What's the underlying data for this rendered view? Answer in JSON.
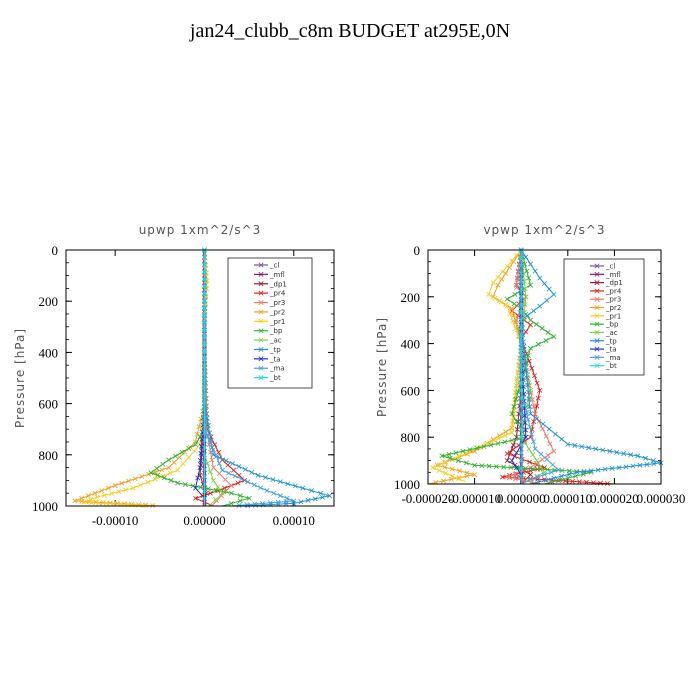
{
  "title": "jan24_clubb_c8m  BUDGET at295E,0N",
  "colors": {
    "_cl": "#7b4f9e",
    "_mfl": "#7d1a7d",
    "_dp1": "#a0162a",
    "_pr4": "#e0201c",
    "_pr3": "#f07a6a",
    "_pr2": "#f0a020",
    "_pr1": "#f0d020",
    "_bp": "#30b030",
    "_ac": "#80d040",
    "_tp": "#2090d0",
    "_ta": "#2030c0",
    "_ma": "#40a0e0",
    "_bt": "#20d8f0"
  },
  "chart_data": [
    {
      "type": "line",
      "title": "upwp   1xm^2/s^3",
      "ylabel": "Pressure [hPa]",
      "xlabel": "",
      "xlim": [
        -0.000155,
        0.000145
      ],
      "ylim": [
        1000,
        0
      ],
      "xticks": [
        -0.0001,
        0,
        0.0001
      ],
      "xtick_labels": [
        "-0.00010",
        "0.00000",
        "0.00010"
      ],
      "yticks": [
        0,
        200,
        400,
        600,
        800,
        1000
      ],
      "ytick_labels": [
        "0",
        "200",
        "400",
        "600",
        "800",
        "1000"
      ],
      "legend": [
        "_cl",
        "_mfl",
        "_dp1",
        "_pr4",
        "_pr3",
        "_pr2",
        "_pr1",
        "_bp",
        "_ac",
        "_tp",
        "_ta",
        "_ma",
        "_bt"
      ],
      "legend_position": "top-right",
      "series": [
        {
          "name": "_cl",
          "x": [
            0,
            0,
            0,
            0,
            0,
            0
          ],
          "y": [
            0,
            200,
            400,
            600,
            800,
            1000
          ]
        },
        {
          "name": "_mfl",
          "x": [
            0,
            0,
            0,
            0,
            0,
            0
          ],
          "y": [
            0,
            200,
            400,
            600,
            800,
            1000
          ]
        },
        {
          "name": "_dp1",
          "x": [
            0,
            0,
            0,
            0,
            -3e-06,
            -5e-06,
            2e-06,
            0
          ],
          "y": [
            0,
            200,
            400,
            600,
            800,
            880,
            950,
            1000
          ]
        },
        {
          "name": "_pr4",
          "x": [
            0,
            0,
            0,
            3e-06,
            2e-05,
            4.5e-05,
            1.5e-05,
            -1e-05,
            1e-05
          ],
          "y": [
            0,
            200,
            400,
            700,
            820,
            900,
            940,
            970,
            1000
          ]
        },
        {
          "name": "_pr3",
          "x": [
            0,
            0,
            0,
            2e-06,
            1e-05,
            3e-05,
            8e-06
          ],
          "y": [
            0,
            200,
            400,
            700,
            850,
            920,
            1000
          ]
        },
        {
          "name": "_pr2",
          "x": [
            0,
            2e-06,
            0,
            0,
            -1e-05,
            -4e-05,
            -0.0001,
            -0.00013,
            -0.000145,
            -5e-05
          ],
          "y": [
            0,
            150,
            300,
            600,
            750,
            850,
            920,
            960,
            980,
            1000
          ]
        },
        {
          "name": "_pr1",
          "x": [
            0,
            3e-06,
            0,
            0,
            -5e-06,
            -3e-05,
            -8e-05,
            -0.00012,
            -0.000135,
            -6e-05
          ],
          "y": [
            0,
            120,
            250,
            600,
            760,
            860,
            930,
            965,
            985,
            1000
          ]
        },
        {
          "name": "_bp",
          "x": [
            0,
            0,
            0,
            -1e-05,
            -4e-05,
            -6e-05,
            -3e-05,
            3e-05,
            5e-05,
            2e-05
          ],
          "y": [
            0,
            400,
            700,
            760,
            820,
            870,
            910,
            950,
            970,
            1000
          ]
        },
        {
          "name": "_ac",
          "x": [
            0,
            0,
            0,
            1e-05,
            2e-05,
            5e-06
          ],
          "y": [
            0,
            400,
            800,
            900,
            950,
            1000
          ]
        },
        {
          "name": "_tp",
          "x": [
            0,
            0,
            1e-05,
            6e-05,
            0.00011,
            0.00014,
            0.0001,
            4e-05
          ],
          "y": [
            0,
            600,
            800,
            880,
            930,
            960,
            990,
            1000
          ]
        },
        {
          "name": "_ta",
          "x": [
            0,
            0,
            -5e-06,
            -1e-05,
            0,
            0
          ],
          "y": [
            0,
            600,
            850,
            930,
            970,
            1000
          ]
        },
        {
          "name": "_ma",
          "x": [
            0,
            0,
            2e-05,
            7e-05,
            0.0001,
            3e-05
          ],
          "y": [
            0,
            700,
            860,
            940,
            980,
            1000
          ]
        },
        {
          "name": "_bt",
          "x": [
            0,
            0,
            0,
            0,
            0,
            0
          ],
          "y": [
            0,
            200,
            400,
            600,
            800,
            1000
          ]
        }
      ]
    },
    {
      "type": "line",
      "title": "vpwp   1xm^2/s^3",
      "ylabel": "Pressure [hPa]",
      "xlabel": "",
      "xlim": [
        -2e-05,
        3e-05
      ],
      "ylim": [
        1000,
        0
      ],
      "xticks": [
        -2e-05,
        -1e-05,
        0,
        1e-05,
        2e-05,
        3e-05
      ],
      "xtick_labels": [
        "-0.000020",
        "-0.000010",
        "0.000000",
        "0.000010",
        "0.000020",
        "0.000030"
      ],
      "yticks": [
        0,
        200,
        400,
        600,
        800,
        1000
      ],
      "ytick_labels": [
        "0",
        "200",
        "400",
        "600",
        "800",
        "1000"
      ],
      "legend": [
        "_cl",
        "_mfl",
        "_dp1",
        "_pr4",
        "_pr3",
        "_pr2",
        "_pr1",
        "_bp",
        "_ac",
        "_tp",
        "_ta",
        "_ma",
        "_bt"
      ],
      "legend_position": "top-right",
      "series": [
        {
          "name": "_cl",
          "x": [
            0,
            0,
            0,
            0,
            0,
            0
          ],
          "y": [
            0,
            200,
            400,
            600,
            800,
            1000
          ]
        },
        {
          "name": "_mfl",
          "x": [
            0,
            0,
            0,
            0,
            0,
            0
          ],
          "y": [
            0,
            200,
            400,
            600,
            800,
            1000
          ]
        },
        {
          "name": "_dp1",
          "x": [
            0,
            0,
            0,
            -1e-06,
            -3e-06,
            2e-06,
            0
          ],
          "y": [
            0,
            300,
            600,
            800,
            900,
            960,
            1000
          ]
        },
        {
          "name": "_pr4",
          "x": [
            0,
            -1e-06,
            1e-06,
            -2e-06,
            2e-06,
            0,
            4e-06,
            2e-06,
            -3e-06,
            5e-06,
            -4e-06,
            2e-05
          ],
          "y": [
            0,
            150,
            200,
            260,
            320,
            380,
            600,
            800,
            870,
            930,
            970,
            1000
          ]
        },
        {
          "name": "_pr3",
          "x": [
            0,
            -1e-06,
            1e-06,
            -1e-06,
            0,
            3e-06,
            7e-06,
            2e-06,
            -3e-06,
            4e-06
          ],
          "y": [
            0,
            160,
            200,
            300,
            400,
            700,
            860,
            930,
            970,
            1000
          ]
        },
        {
          "name": "_pr2",
          "x": [
            0,
            -5e-06,
            -6e-06,
            -2e-06,
            0,
            -2e-06,
            -1e-05,
            -1.8e-05,
            -1e-05,
            -2e-05
          ],
          "y": [
            0,
            150,
            200,
            250,
            400,
            760,
            860,
            920,
            960,
            1000
          ]
        },
        {
          "name": "_pr1",
          "x": [
            0,
            -6e-06,
            -7e-06,
            -3e-06,
            0,
            -2e-06,
            -1.2e-05,
            -1.9e-05,
            -1.2e-05
          ],
          "y": [
            0,
            140,
            190,
            240,
            400,
            780,
            870,
            930,
            990
          ]
        },
        {
          "name": "_bp",
          "x": [
            0,
            2e-06,
            -3e-06,
            0,
            2e-06,
            7e-06,
            2e-06,
            -2e-06,
            1e-06,
            -1.7e-05,
            -1e-05,
            1.5e-05,
            5e-06
          ],
          "y": [
            0,
            150,
            210,
            250,
            300,
            370,
            420,
            700,
            800,
            880,
            920,
            950,
            1000
          ]
        },
        {
          "name": "_ac",
          "x": [
            0,
            1e-06,
            0,
            2e-06,
            0,
            5e-06,
            0
          ],
          "y": [
            0,
            200,
            400,
            600,
            800,
            950,
            1000
          ]
        },
        {
          "name": "_tp",
          "x": [
            0,
            4e-06,
            7e-06,
            4e-06,
            0,
            2e-06,
            1e-05,
            2.5e-05,
            3e-05,
            1.2e-05,
            2e-06
          ],
          "y": [
            0,
            120,
            190,
            240,
            300,
            700,
            830,
            880,
            910,
            950,
            1000
          ]
        },
        {
          "name": "_ta",
          "x": [
            0,
            0,
            1e-06,
            -2e-06,
            0,
            0
          ],
          "y": [
            0,
            400,
            800,
            900,
            960,
            1000
          ]
        },
        {
          "name": "_ma",
          "x": [
            0,
            0,
            3e-06,
            8e-06,
            2e-06,
            0
          ],
          "y": [
            0,
            600,
            850,
            940,
            980,
            1000
          ]
        },
        {
          "name": "_bt",
          "x": [
            0,
            0,
            0,
            0,
            0,
            0
          ],
          "y": [
            0,
            200,
            400,
            600,
            800,
            1000
          ]
        }
      ]
    }
  ]
}
